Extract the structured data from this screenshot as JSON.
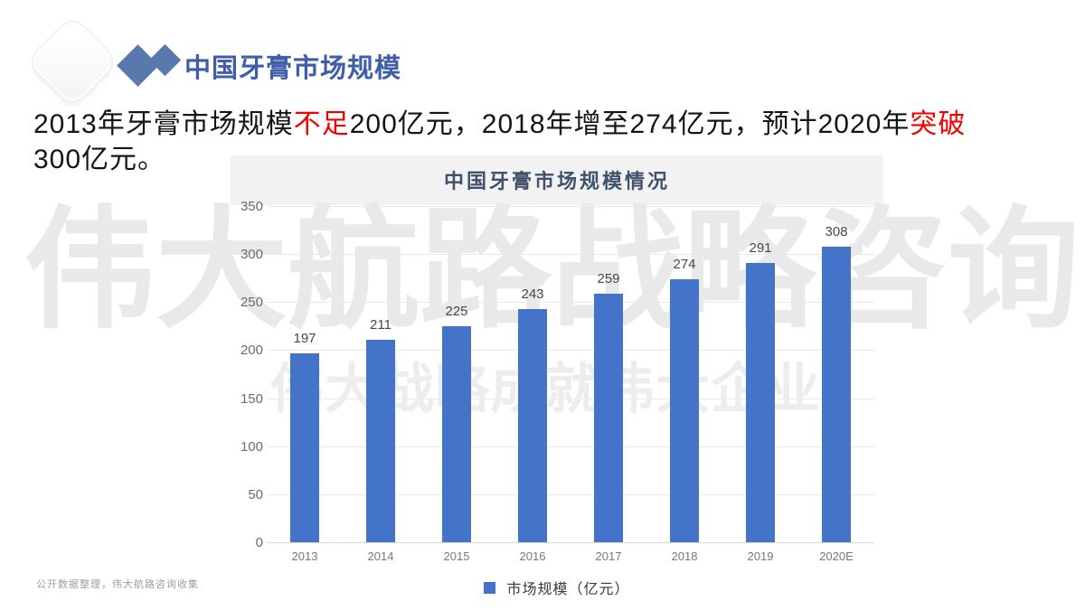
{
  "header": {
    "title": "中国牙膏市场规模"
  },
  "intro": {
    "segments": [
      {
        "text": "2013年牙膏市场规模",
        "color": "#151515"
      },
      {
        "text": "不足",
        "color": "#f40000"
      },
      {
        "text": "200亿元，2018年增至274亿元，预计2020年",
        "color": "#151515"
      },
      {
        "text": "突破",
        "color": "#f40000"
      },
      {
        "text": "300亿元。",
        "color": "#151515",
        "break_before": true
      }
    ]
  },
  "chart_data": {
    "type": "bar",
    "title": "中国牙膏市场规模情况",
    "categories": [
      "2013",
      "2014",
      "2015",
      "2016",
      "2017",
      "2018",
      "2019",
      "2020E"
    ],
    "values": [
      197,
      211,
      225,
      243,
      259,
      274,
      291,
      308
    ],
    "series_name": "市场规模（亿元）",
    "xlabel": "",
    "ylabel": "",
    "ylim": [
      0,
      350
    ],
    "yticks": [
      0,
      50,
      100,
      150,
      200,
      250,
      300,
      350
    ],
    "grid": true,
    "legend_position": "bottom",
    "bar_color": "#4474ca"
  },
  "watermark": {
    "line1": "伟大航路战略咨询",
    "line2": "伟大战略成就伟大企业"
  },
  "footer": {
    "source": "公开数据整理，伟大航路咨询收集"
  },
  "colors": {
    "accent_blue": "#3e5ea9",
    "diamond_blue": "#5878ae",
    "emphasis_red": "#f40000",
    "bar_blue": "#4474ca",
    "watermark_gray": "#e9e9e9"
  }
}
